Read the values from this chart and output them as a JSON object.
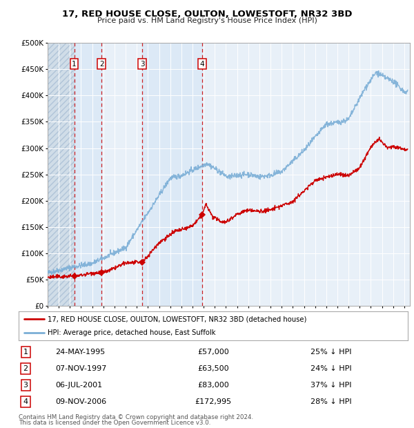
{
  "title": "17, RED HOUSE CLOSE, OULTON, LOWESTOFT, NR32 3BD",
  "subtitle": "Price paid vs. HM Land Registry's House Price Index (HPI)",
  "ylim": [
    0,
    500000
  ],
  "yticks": [
    0,
    50000,
    100000,
    150000,
    200000,
    250000,
    300000,
    350000,
    400000,
    450000,
    500000
  ],
  "ytick_labels": [
    "£0",
    "£50K",
    "£100K",
    "£150K",
    "£200K",
    "£250K",
    "£300K",
    "£350K",
    "£400K",
    "£450K",
    "£500K"
  ],
  "xlim_start": 1993.0,
  "xlim_end": 2025.5,
  "sale_dates": [
    1995.388,
    1997.847,
    2001.505,
    2006.858
  ],
  "sale_prices": [
    57000,
    63500,
    83000,
    172995
  ],
  "sale_labels": [
    "1",
    "2",
    "3",
    "4"
  ],
  "background_color": "#ffffff",
  "plot_bg_color": "#e8f0f8",
  "grid_color": "#ffffff",
  "red_line_color": "#cc0000",
  "blue_line_color": "#7aaed6",
  "dashed_color": "#cc0000",
  "legend_red_label": "17, RED HOUSE CLOSE, OULTON, LOWESTOFT, NR32 3BD (detached house)",
  "legend_blue_label": "HPI: Average price, detached house, East Suffolk",
  "footer1": "Contains HM Land Registry data © Crown copyright and database right 2024.",
  "footer2": "This data is licensed under the Open Government Licence v3.0.",
  "table_rows": [
    [
      "1",
      "24-MAY-1995",
      "£57,000",
      "25% ↓ HPI"
    ],
    [
      "2",
      "07-NOV-1997",
      "£63,500",
      "24% ↓ HPI"
    ],
    [
      "3",
      "06-JUL-2001",
      "£83,000",
      "37% ↓ HPI"
    ],
    [
      "4",
      "09-NOV-2006",
      "£172,995",
      "28% ↓ HPI"
    ]
  ]
}
